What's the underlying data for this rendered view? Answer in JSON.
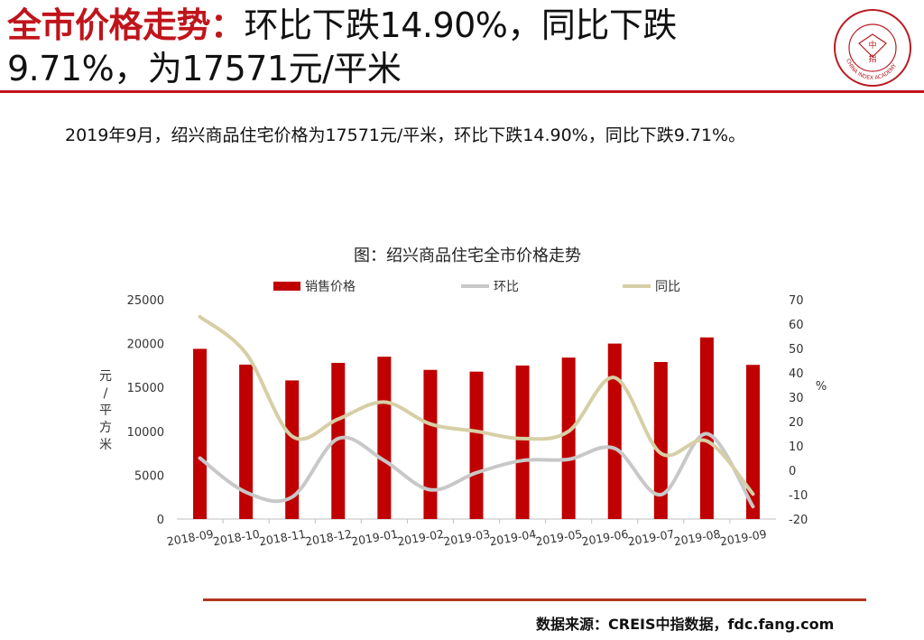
{
  "header": {
    "title_highlight": "全市价格走势：",
    "title_line1_rest": "环比下跌14.90%，同比下跌",
    "title_line2": "9.71%，为17571元/平米"
  },
  "logo": {
    "text_center_1": "中",
    "text_center_2": "指",
    "text_ring": "CHINA INDEX ACADEMY"
  },
  "summary": "2019年9月，绍兴商品住宅价格为17571元/平米，环比下跌14.90%，同比下跌9.71%。",
  "source": "数据来源：CREIS中指数据，fdc.fang.com",
  "colors": {
    "accent": "#c0141b",
    "bar": "#c00000",
    "mom": "#c8c8c8",
    "yoy": "#d6cfa6"
  },
  "chart_data": {
    "type": "bar",
    "title": "图：绍兴商品住宅全市价格走势",
    "categories": [
      "2018-09",
      "2018-10",
      "2018-11",
      "2018-12",
      "2019-01",
      "2019-02",
      "2019-03",
      "2019-04",
      "2019-05",
      "2019-06",
      "2019-07",
      "2019-08",
      "2019-09"
    ],
    "ylabel": "元/平方米",
    "y2label": "%",
    "ylim": [
      0,
      25000
    ],
    "y2lim": [
      -20,
      70
    ],
    "yticks": [
      "0",
      "5000",
      "10000",
      "15000",
      "20000",
      "25000"
    ],
    "y2ticks": [
      "-20",
      "-10",
      "0",
      "10",
      "20",
      "30",
      "40",
      "50",
      "60",
      "70"
    ],
    "legend_position": "top",
    "grid": false,
    "series": [
      {
        "name": "销售价格",
        "type": "bar",
        "axis": "left",
        "values": [
          19400,
          17600,
          15800,
          17800,
          18500,
          17000,
          16800,
          17500,
          18400,
          20000,
          17900,
          20700,
          17571
        ]
      },
      {
        "name": "环比",
        "type": "line",
        "axis": "right",
        "values": [
          5,
          -9,
          -11,
          13,
          4,
          -8,
          -1,
          4,
          4.5,
          9,
          -10,
          15,
          -14.9
        ]
      },
      {
        "name": "同比",
        "type": "line",
        "axis": "right",
        "values": [
          63,
          48,
          14,
          21,
          28,
          19,
          16,
          13,
          16,
          38,
          7,
          12,
          -9.71
        ]
      }
    ]
  }
}
